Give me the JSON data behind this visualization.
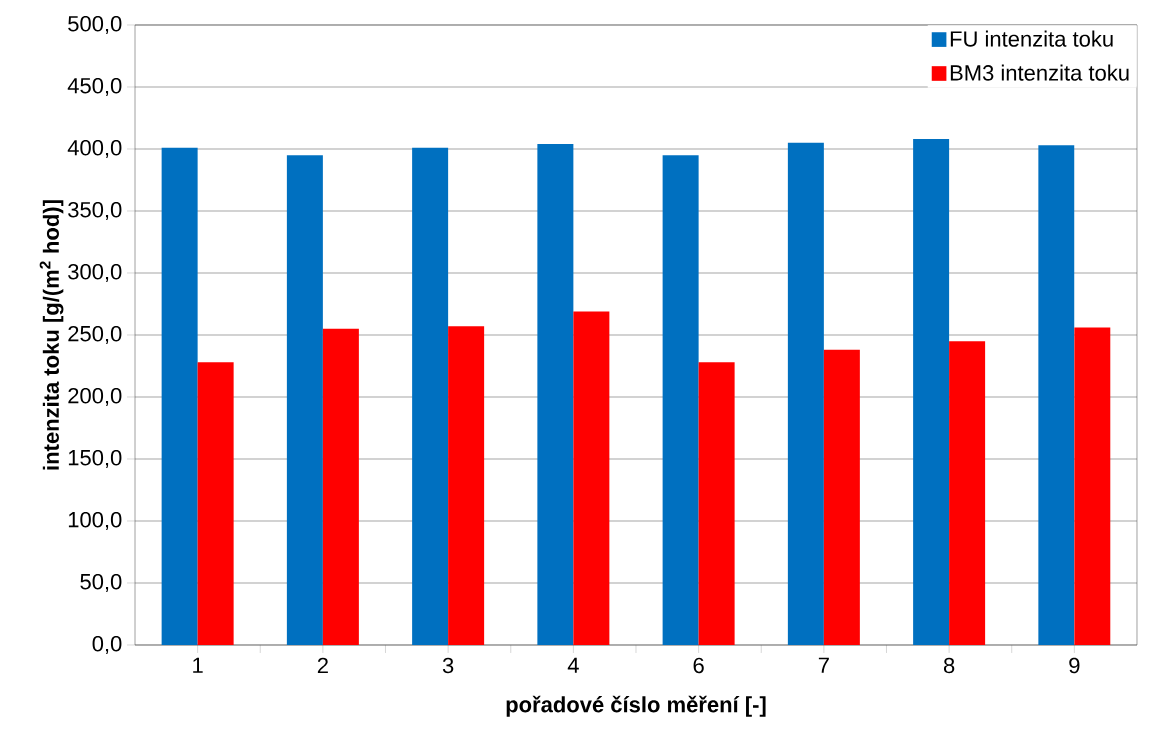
{
  "chart_data": {
    "type": "bar",
    "xlabel": "pořadové číslo měření [-]",
    "ylabel": "intenzita toku [g/(m$^{2}$ hod)]",
    "categories": [
      "1",
      "2",
      "3",
      "4",
      "6",
      "7",
      "8",
      "9"
    ],
    "series": [
      {
        "name": "FU intenzita toku",
        "color": "#0070c0",
        "values": [
          401,
          395,
          401,
          404,
          395,
          405,
          408,
          403
        ]
      },
      {
        "name": "BM3 intenzita toku",
        "color": "#ff0000",
        "values": [
          228,
          255,
          257,
          269,
          228,
          238,
          245,
          256
        ]
      }
    ],
    "ylim": [
      0,
      500
    ],
    "yticks": [
      {
        "value": 0,
        "label": "0,0"
      },
      {
        "value": 50,
        "label": "50,0"
      },
      {
        "value": 100,
        "label": "100,0"
      },
      {
        "value": 150,
        "label": "150,0"
      },
      {
        "value": 200,
        "label": "200,0"
      },
      {
        "value": 250,
        "label": "250,0"
      },
      {
        "value": 300,
        "label": "300,0"
      },
      {
        "value": 350,
        "label": "350,0"
      },
      {
        "value": 400,
        "label": "400,0"
      },
      {
        "value": 450,
        "label": "450,0"
      },
      {
        "value": 500,
        "label": "500,0"
      }
    ],
    "grid": "y",
    "legend": "top right"
  }
}
